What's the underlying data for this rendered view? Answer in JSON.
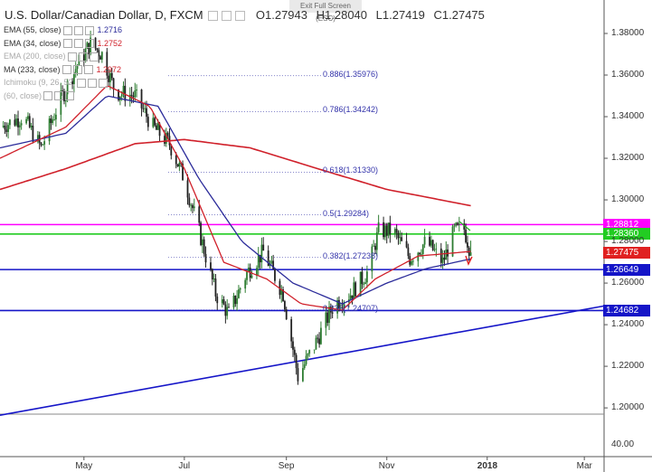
{
  "header": {
    "pair": "U.S. Dollar/Canadian Dollar, D, FXCM",
    "open": "O1.27943",
    "high": "H1.28040",
    "low": "L1.27419",
    "close": "C1.27475",
    "exit_fullscreen": "Exit Full Screen (ESC)"
  },
  "indicators": [
    {
      "label": "EMA (55, close)",
      "value": "1.2716",
      "color": "#2b2b9a",
      "faded": false
    },
    {
      "label": "EMA (34, close)",
      "value": "1.2752",
      "color": "#d0202a",
      "faded": false
    },
    {
      "label": "EMA (200, close)",
      "value": "",
      "color": "#aaaaaa",
      "faded": true
    },
    {
      "label": "MA (233, close)",
      "value": "1.2972",
      "color": "#d0202a",
      "faded": false
    },
    {
      "label": "Ichimoku (9, 26, 52,",
      "value": "",
      "color": "#aaaaaa",
      "faded": true
    },
    {
      "label": "(60, close)",
      "value": "",
      "color": "#aaaaaa",
      "faded": true
    }
  ],
  "fib_levels": [
    {
      "label": "0.886(1.35976)",
      "value": 1.35976
    },
    {
      "label": "0.786(1.34242)",
      "value": 1.34242
    },
    {
      "label": "0.618(1.31330)",
      "value": 1.3133
    },
    {
      "label": "0.5(1.29284)",
      "value": 1.29284
    },
    {
      "label": "0.382(1.27238)",
      "value": 1.27238
    },
    {
      "label": "0.236(1.24707)",
      "value": 1.24707
    }
  ],
  "price_labels": [
    {
      "text": "1.28812",
      "value": 1.28812,
      "color": "#ff00ff"
    },
    {
      "text": "1.28360",
      "value": 1.2836,
      "color": "#22cc22"
    },
    {
      "text": "1.27475",
      "value": 1.27475,
      "color": "#e02020"
    },
    {
      "text": "1.26649",
      "value": 1.26649,
      "color": "#1515c8"
    },
    {
      "text": "1.24682",
      "value": 1.24682,
      "color": "#1515c8"
    }
  ],
  "colors": {
    "up_candle": "#2e7d32",
    "down_candle": "#222222",
    "magenta_line": "#ff00ff",
    "green_line": "#22cc22",
    "blue_line": "#1515c8",
    "ema34": "#d0202a",
    "ema55": "#2b2b9a",
    "ma233": "#d0202a"
  },
  "chart_data": {
    "type": "candlestick",
    "y_ticks": [
      "1.38000",
      "1.36000",
      "1.34000",
      "1.32000",
      "1.30000",
      "1.28000",
      "1.26000",
      "1.24000",
      "1.22000",
      "1.20000"
    ],
    "y_tick_values": [
      1.38,
      1.36,
      1.34,
      1.32,
      1.3,
      1.28,
      1.26,
      1.24,
      1.22,
      1.2
    ],
    "ylim": [
      1.197,
      1.39
    ],
    "x_ticks": [
      "May",
      "Jul",
      "Sep",
      "Nov",
      "2018",
      "Mar"
    ],
    "x_tick_dates": [
      "2017-05-01",
      "2017-07-01",
      "2017-09-01",
      "2017-11-01",
      "2018-01-01",
      "2018-03-01"
    ],
    "xlim": [
      "2017-03-11",
      "2018-03-13"
    ],
    "lower_pane_tick": "40.00",
    "horizontal_lines": [
      {
        "value": 1.28812,
        "color": "#ff00ff"
      },
      {
        "value": 1.2836,
        "color": "#22cc22"
      },
      {
        "value": 1.26649,
        "color": "#1515c8"
      },
      {
        "value": 1.24682,
        "color": "#1515c8"
      }
    ],
    "trendline": {
      "start": [
        "2017-03-11",
        1.1965
      ],
      "end": [
        "2018-03-13",
        1.249
      ]
    },
    "close_anchors": [
      [
        "2017-03-11",
        1.335
      ],
      [
        "2017-03-25",
        1.34
      ],
      [
        "2017-04-05",
        1.325
      ],
      [
        "2017-04-15",
        1.345
      ],
      [
        "2017-04-27",
        1.365
      ],
      [
        "2017-05-05",
        1.375
      ],
      [
        "2017-05-12",
        1.37
      ],
      [
        "2017-05-20",
        1.352
      ],
      [
        "2017-06-01",
        1.35
      ],
      [
        "2017-06-12",
        1.335
      ],
      [
        "2017-06-22",
        1.327
      ],
      [
        "2017-07-01",
        1.31
      ],
      [
        "2017-07-10",
        1.285
      ],
      [
        "2017-07-20",
        1.255
      ],
      [
        "2017-07-28",
        1.245
      ],
      [
        "2017-08-08",
        1.265
      ],
      [
        "2017-08-18",
        1.275
      ],
      [
        "2017-08-30",
        1.255
      ],
      [
        "2017-09-08",
        1.215
      ],
      [
        "2017-09-18",
        1.23
      ],
      [
        "2017-09-30",
        1.25
      ],
      [
        "2017-10-10",
        1.255
      ],
      [
        "2017-10-20",
        1.265
      ],
      [
        "2017-10-27",
        1.285
      ],
      [
        "2017-11-05",
        1.285
      ],
      [
        "2017-11-15",
        1.272
      ],
      [
        "2017-11-25",
        1.28
      ],
      [
        "2017-12-05",
        1.27
      ],
      [
        "2017-12-12",
        1.285
      ],
      [
        "2017-12-18",
        1.286
      ],
      [
        "2017-12-22",
        1.27475
      ]
    ],
    "ema34_anchors": [
      [
        "2017-03-11",
        1.32
      ],
      [
        "2017-04-20",
        1.335
      ],
      [
        "2017-05-15",
        1.355
      ],
      [
        "2017-06-10",
        1.345
      ],
      [
        "2017-07-01",
        1.315
      ],
      [
        "2017-07-25",
        1.27
      ],
      [
        "2017-08-20",
        1.262
      ],
      [
        "2017-09-10",
        1.25
      ],
      [
        "2017-10-05",
        1.247
      ],
      [
        "2017-10-25",
        1.262
      ],
      [
        "2017-11-20",
        1.273
      ],
      [
        "2017-12-22",
        1.2752
      ]
    ],
    "ema55_anchors": [
      [
        "2017-03-11",
        1.325
      ],
      [
        "2017-04-20",
        1.332
      ],
      [
        "2017-05-15",
        1.35
      ],
      [
        "2017-06-15",
        1.345
      ],
      [
        "2017-07-10",
        1.31
      ],
      [
        "2017-08-05",
        1.28
      ],
      [
        "2017-09-05",
        1.26
      ],
      [
        "2017-10-05",
        1.25
      ],
      [
        "2017-11-01",
        1.26
      ],
      [
        "2017-11-25",
        1.267
      ],
      [
        "2017-12-22",
        1.2716
      ]
    ],
    "ma233_anchors": [
      [
        "2017-03-11",
        1.305
      ],
      [
        "2017-04-20",
        1.315
      ],
      [
        "2017-06-01",
        1.327
      ],
      [
        "2017-07-01",
        1.329
      ],
      [
        "2017-08-10",
        1.325
      ],
      [
        "2017-09-20",
        1.315
      ],
      [
        "2017-11-01",
        1.305
      ],
      [
        "2017-12-22",
        1.2972
      ]
    ]
  }
}
